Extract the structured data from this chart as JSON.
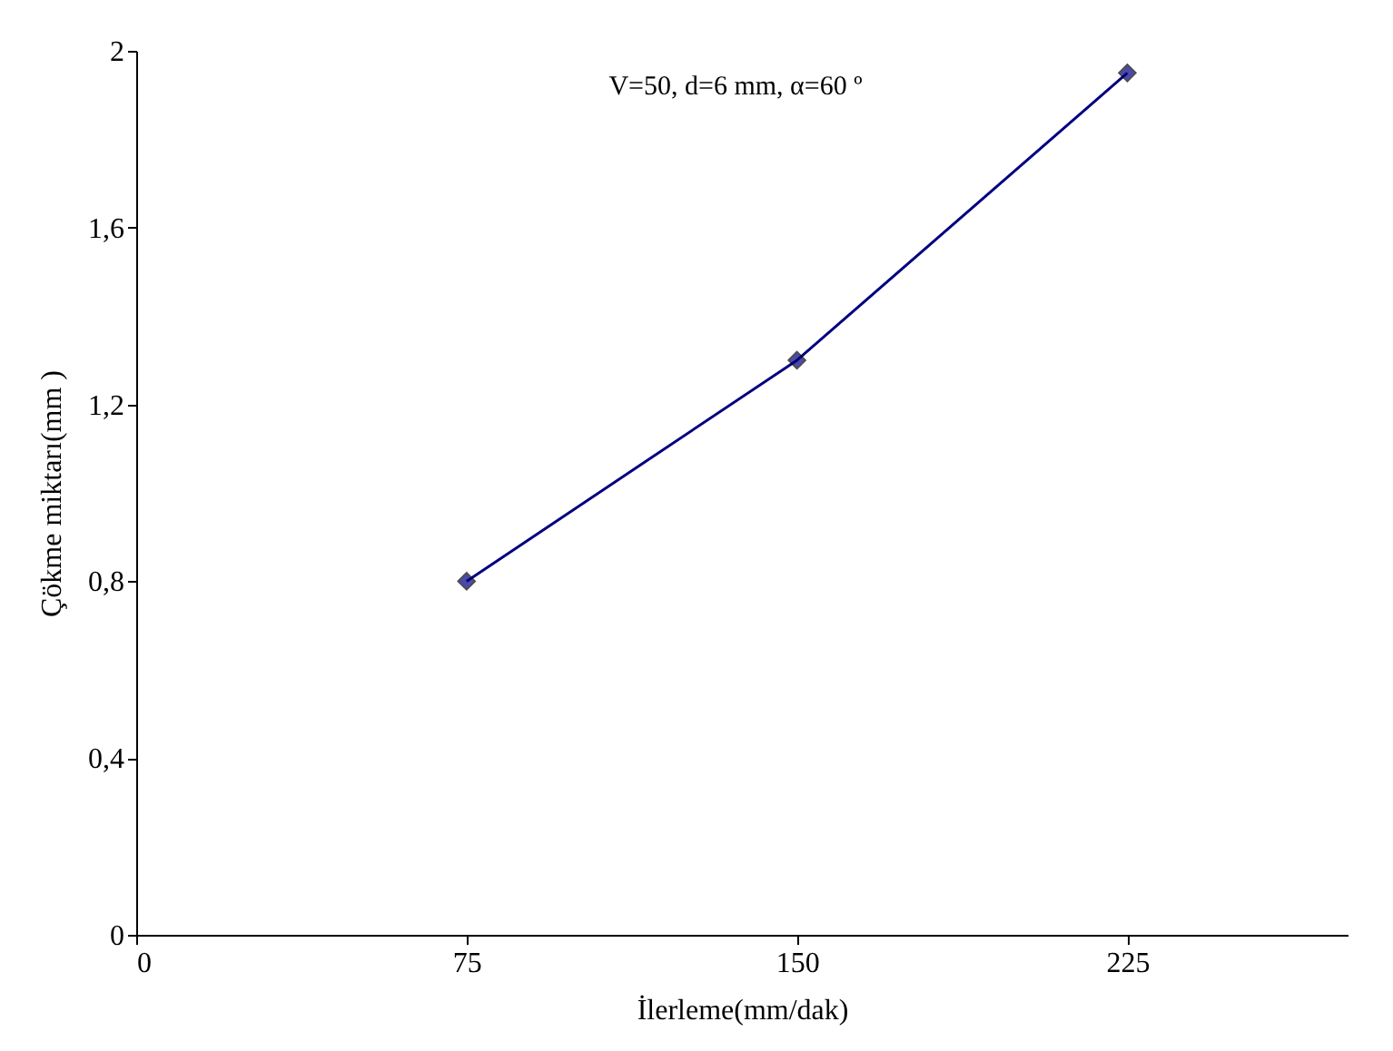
{
  "chart_data": {
    "type": "line",
    "xlabel": "İlerleme(mm/dak)",
    "ylabel": "Çökme miktarı(mm )",
    "annotations": [
      "V=50, d=6 mm,  α=60 º"
    ],
    "x": [
      75,
      150,
      225
    ],
    "series": [
      {
        "color": "#000080",
        "values": [
          0.8,
          1.3,
          1.95
        ]
      }
    ],
    "xlim": [
      0,
      275
    ],
    "xticks": [
      0,
      75,
      150,
      225
    ],
    "ylim": [
      0,
      2
    ],
    "yticks": [
      {
        "value": 0,
        "label": "0"
      },
      {
        "value": 0.4,
        "label": "0,4"
      },
      {
        "value": 0.8,
        "label": "0,8"
      },
      {
        "value": 1.2,
        "label": "1,2"
      },
      {
        "value": 1.6,
        "label": "1,6"
      },
      {
        "value": 2,
        "label": "2"
      }
    ],
    "marker": "diamond",
    "line_style": "solid",
    "grid": false
  }
}
